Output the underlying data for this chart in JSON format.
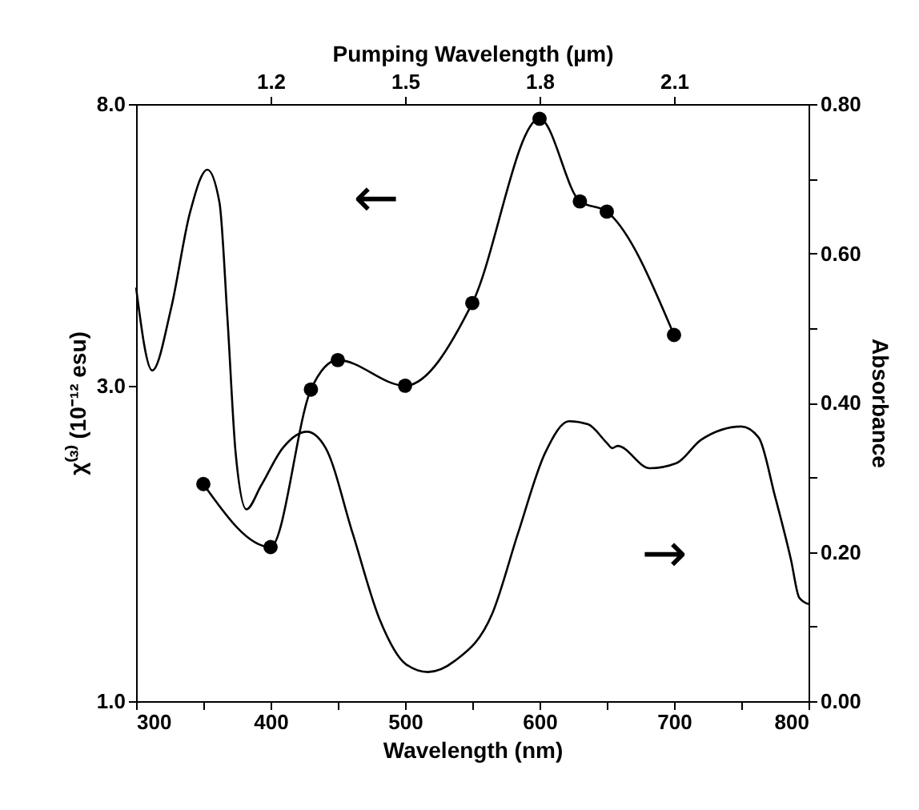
{
  "chart_data": {
    "type": "line",
    "xlabel": "Wavelength (nm)",
    "x2label": "Pumping Wavelength (µm)",
    "ylabel": "χ⁽³⁾ (10⁻¹² esu)",
    "y2label": "Absorbance",
    "xlim": [
      300,
      800
    ],
    "xticks": [
      300,
      {
        "value": 350,
        "label": null
      },
      400,
      {
        "value": 450,
        "label": null
      },
      500,
      {
        "value": 550,
        "label": null
      },
      600,
      {
        "value": 650,
        "label": null
      },
      700,
      {
        "value": 750,
        "label": null
      },
      800
    ],
    "x2lim": [
      0.9,
      2.4
    ],
    "x2ticks": [
      1.2,
      1.5,
      1.8,
      2.1
    ],
    "ylim": [
      1,
      8
    ],
    "yticks": [
      {
        "value": 1,
        "label": "1.0"
      },
      {
        "value": 3,
        "label": "3.0"
      },
      {
        "value": 8,
        "label": "8.0"
      }
    ],
    "log": "y",
    "y2lim": [
      0,
      0.8
    ],
    "y2ticks": [
      {
        "value": 0,
        "label": "0.00"
      },
      {
        "value": 0.1,
        "label": null
      },
      {
        "value": 0.2,
        "label": "0.20"
      },
      {
        "value": 0.3,
        "label": null
      },
      {
        "value": 0.4,
        "label": "0.40"
      },
      {
        "value": 0.5,
        "label": null
      },
      {
        "value": 0.6,
        "label": "0.60"
      },
      {
        "value": 0.7,
        "label": null
      },
      {
        "value": 0.8,
        "label": "0.80"
      }
    ],
    "grid": false,
    "annotations": [
      "←",
      "→"
    ],
    "series": [
      {
        "marker": "circle",
        "color": "#000000",
        "x": [
          350,
          400,
          430,
          450,
          500,
          550,
          600,
          630,
          650,
          700
        ],
        "values": [
          2.13,
          1.71,
          2.96,
          3.28,
          3.0,
          4.0,
          7.6,
          5.7,
          5.5,
          3.58
        ]
      },
      {
        "marker": "none",
        "axis": "y2",
        "color": "#000000",
        "x": [
          300,
          312,
          326,
          340,
          353,
          362,
          368,
          374,
          382,
          393,
          409,
          427,
          441,
          461,
          481,
          501,
          517,
          537,
          565,
          584,
          604,
          622,
          636,
          650,
          654,
          658,
          682,
          702,
          720,
          750,
          763,
          775,
          787,
          793,
          800
        ],
        "values": [
          0.554,
          0.443,
          0.526,
          0.654,
          0.712,
          0.668,
          0.511,
          0.333,
          0.257,
          0.289,
          0.339,
          0.361,
          0.339,
          0.225,
          0.11,
          0.049,
          0.039,
          0.054,
          0.118,
          0.225,
          0.332,
          0.375,
          0.371,
          0.346,
          0.339,
          0.342,
          0.312,
          0.319,
          0.35,
          0.368,
          0.353,
          0.275,
          0.189,
          0.139,
          0.13
        ]
      }
    ]
  }
}
